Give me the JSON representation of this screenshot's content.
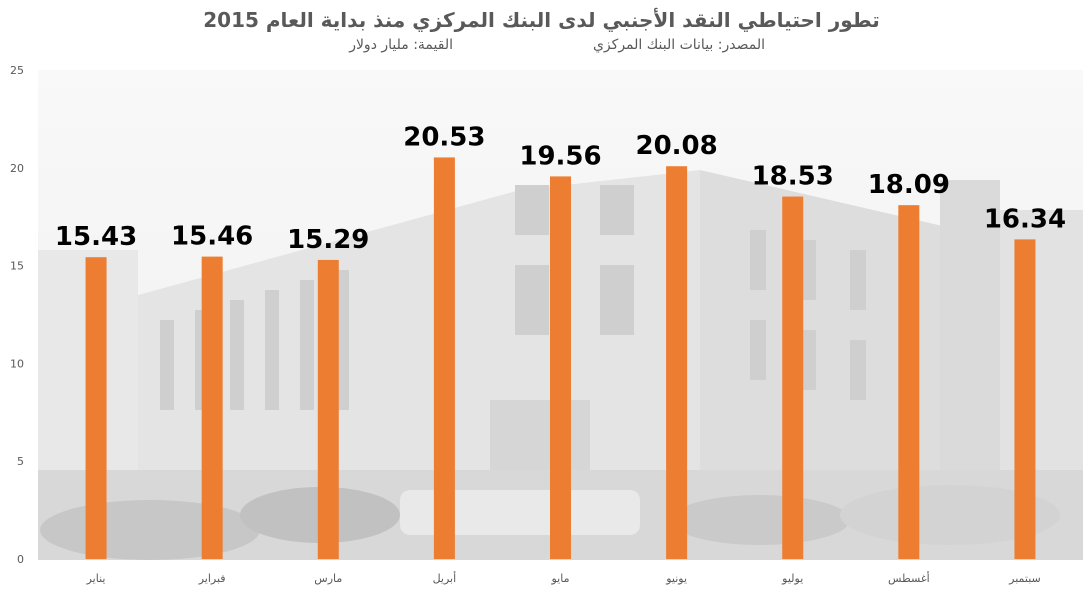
{
  "chart_data": {
    "type": "bar",
    "title": "تطور احتياطي النقد الأجنبي لدى البنك المركزي منذ بداية العام 2015",
    "subtitle_source": "المصدر: بيانات البنك المركزي",
    "subtitle_unit": "القيمة: مليار دولار",
    "categories": [
      "يناير",
      "فبراير",
      "مارس",
      "أبريل",
      "مايو",
      "يونيو",
      "يوليو",
      "أغسطس",
      "سبتمبر"
    ],
    "values": [
      15.43,
      15.46,
      15.29,
      20.53,
      19.56,
      20.08,
      18.53,
      18.09,
      16.34
    ],
    "data_labels": [
      "15.43",
      "15.46",
      "15.29",
      "20.53",
      "19.56",
      "20.08",
      "18.53",
      "18.09",
      "16.34"
    ],
    "ylim": [
      0,
      25
    ],
    "yticks": [
      0,
      5,
      10,
      15,
      20,
      25
    ],
    "bar_color": "#ED7D31",
    "grid": false,
    "legend": "none",
    "background": "photo"
  }
}
